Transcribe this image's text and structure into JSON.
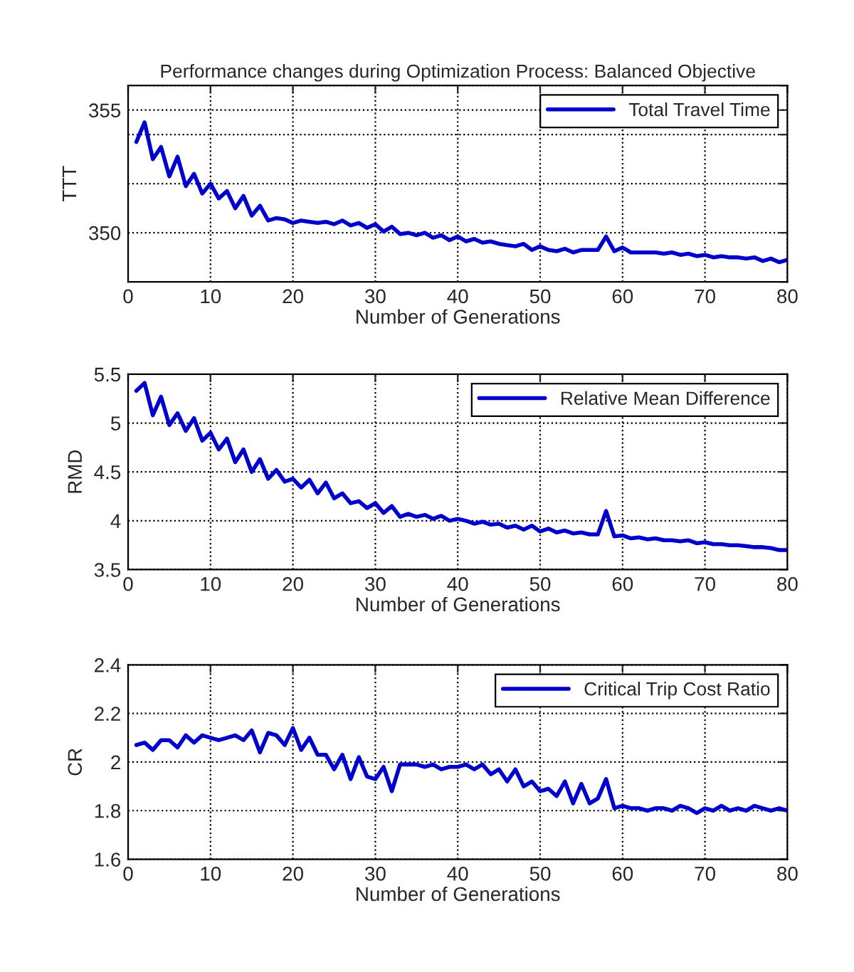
{
  "chart_data": [
    {
      "type": "line",
      "title": "Performance changes during Optimization Process: Balanced Objective",
      "xlabel": "Number of Generations",
      "ylabel": "TTT",
      "xlim": [
        0,
        80
      ],
      "xticks": [
        0,
        10,
        20,
        30,
        40,
        50,
        60,
        70,
        80
      ],
      "ylim": [
        348,
        356
      ],
      "yticks": [
        {
          "value": 348,
          "label": null
        },
        350,
        {
          "value": 352,
          "label": null
        },
        {
          "value": 354,
          "label": null
        },
        355,
        {
          "value": 356,
          "label": null
        }
      ],
      "grid": true,
      "legend": "top right",
      "x": [
        1,
        2,
        3,
        4,
        5,
        6,
        7,
        8,
        9,
        10,
        11,
        12,
        13,
        14,
        15,
        16,
        17,
        18,
        19,
        20,
        21,
        22,
        23,
        24,
        25,
        26,
        27,
        28,
        29,
        30,
        31,
        32,
        33,
        34,
        35,
        36,
        37,
        38,
        39,
        40,
        41,
        42,
        43,
        44,
        45,
        46,
        47,
        48,
        49,
        50,
        51,
        52,
        53,
        54,
        55,
        56,
        57,
        58,
        59,
        60,
        61,
        62,
        63,
        64,
        65,
        66,
        67,
        68,
        69,
        70,
        71,
        72,
        73,
        74,
        75,
        76,
        77,
        78,
        79,
        80
      ],
      "series": [
        {
          "name": "Total Travel Time",
          "color": "#0000cc",
          "values": [
            353.7,
            354.5,
            353.0,
            353.5,
            352.3,
            353.1,
            351.9,
            352.4,
            351.6,
            352.0,
            351.4,
            351.7,
            351.0,
            351.5,
            350.7,
            351.1,
            350.5,
            350.6,
            350.55,
            350.4,
            350.5,
            350.45,
            350.4,
            350.45,
            350.35,
            350.5,
            350.3,
            350.4,
            350.2,
            350.35,
            350.05,
            350.25,
            349.95,
            350.0,
            349.9,
            350.0,
            349.8,
            349.9,
            349.7,
            349.85,
            349.65,
            349.75,
            349.6,
            349.65,
            349.55,
            349.5,
            349.45,
            349.55,
            349.3,
            349.45,
            349.3,
            349.25,
            349.35,
            349.2,
            349.3,
            349.3,
            349.3,
            349.85,
            349.25,
            349.4,
            349.2,
            349.2,
            349.2,
            349.2,
            349.15,
            349.2,
            349.1,
            349.15,
            349.05,
            349.1,
            349.0,
            349.05,
            349.0,
            349.0,
            348.95,
            349.0,
            348.85,
            348.95,
            348.8,
            348.9
          ]
        }
      ]
    },
    {
      "type": "line",
      "xlabel": "Number of Generations",
      "ylabel": "RMD",
      "xlim": [
        0,
        80
      ],
      "xticks": [
        0,
        10,
        20,
        30,
        40,
        50,
        60,
        70,
        80
      ],
      "ylim": [
        3.5,
        5.5
      ],
      "yticks": [
        3.5,
        4,
        4.5,
        5,
        5.5
      ],
      "grid": true,
      "legend": "top right",
      "x": [
        1,
        2,
        3,
        4,
        5,
        6,
        7,
        8,
        9,
        10,
        11,
        12,
        13,
        14,
        15,
        16,
        17,
        18,
        19,
        20,
        21,
        22,
        23,
        24,
        25,
        26,
        27,
        28,
        29,
        30,
        31,
        32,
        33,
        34,
        35,
        36,
        37,
        38,
        39,
        40,
        41,
        42,
        43,
        44,
        45,
        46,
        47,
        48,
        49,
        50,
        51,
        52,
        53,
        54,
        55,
        56,
        57,
        58,
        59,
        60,
        61,
        62,
        63,
        64,
        65,
        66,
        67,
        68,
        69,
        70,
        71,
        72,
        73,
        74,
        75,
        76,
        77,
        78,
        79,
        80
      ],
      "series": [
        {
          "name": "Relative Mean Difference",
          "color": "#0000cc",
          "values": [
            5.33,
            5.41,
            5.08,
            5.27,
            4.98,
            5.1,
            4.92,
            5.05,
            4.82,
            4.9,
            4.73,
            4.84,
            4.6,
            4.73,
            4.5,
            4.63,
            4.43,
            4.52,
            4.4,
            4.43,
            4.34,
            4.42,
            4.28,
            4.39,
            4.23,
            4.28,
            4.18,
            4.2,
            4.13,
            4.18,
            4.08,
            4.15,
            4.04,
            4.07,
            4.04,
            4.06,
            4.02,
            4.05,
            4.0,
            4.02,
            4.0,
            3.97,
            3.99,
            3.96,
            3.97,
            3.93,
            3.95,
            3.91,
            3.95,
            3.89,
            3.92,
            3.88,
            3.9,
            3.87,
            3.88,
            3.86,
            3.86,
            4.1,
            3.84,
            3.85,
            3.82,
            3.83,
            3.81,
            3.82,
            3.8,
            3.8,
            3.79,
            3.8,
            3.77,
            3.78,
            3.76,
            3.76,
            3.75,
            3.75,
            3.74,
            3.73,
            3.73,
            3.72,
            3.7,
            3.7
          ]
        }
      ]
    },
    {
      "type": "line",
      "xlabel": "Number of Generations",
      "ylabel": "CR",
      "xlim": [
        0,
        80
      ],
      "xticks": [
        0,
        10,
        20,
        30,
        40,
        50,
        60,
        70,
        80
      ],
      "ylim": [
        1.6,
        2.4
      ],
      "yticks": [
        1.6,
        1.8,
        2,
        2.2,
        2.4
      ],
      "grid": true,
      "legend": "top right",
      "x": [
        1,
        2,
        3,
        4,
        5,
        6,
        7,
        8,
        9,
        10,
        11,
        12,
        13,
        14,
        15,
        16,
        17,
        18,
        19,
        20,
        21,
        22,
        23,
        24,
        25,
        26,
        27,
        28,
        29,
        30,
        31,
        32,
        33,
        34,
        35,
        36,
        37,
        38,
        39,
        40,
        41,
        42,
        43,
        44,
        45,
        46,
        47,
        48,
        49,
        50,
        51,
        52,
        53,
        54,
        55,
        56,
        57,
        58,
        59,
        60,
        61,
        62,
        63,
        64,
        65,
        66,
        67,
        68,
        69,
        70,
        71,
        72,
        73,
        74,
        75,
        76,
        77,
        78,
        79,
        80
      ],
      "series": [
        {
          "name": "Critical Trip Cost Ratio",
          "color": "#0000cc",
          "values": [
            2.07,
            2.08,
            2.05,
            2.09,
            2.09,
            2.06,
            2.11,
            2.08,
            2.11,
            2.1,
            2.09,
            2.1,
            2.11,
            2.09,
            2.13,
            2.04,
            2.12,
            2.11,
            2.07,
            2.14,
            2.05,
            2.1,
            2.03,
            2.03,
            1.97,
            2.03,
            1.93,
            2.02,
            1.94,
            1.93,
            1.98,
            1.88,
            1.99,
            1.99,
            1.99,
            1.98,
            1.99,
            1.97,
            1.98,
            1.98,
            1.99,
            1.97,
            1.99,
            1.95,
            1.97,
            1.92,
            1.97,
            1.9,
            1.92,
            1.88,
            1.89,
            1.86,
            1.92,
            1.83,
            1.91,
            1.83,
            1.85,
            1.93,
            1.81,
            1.82,
            1.81,
            1.81,
            1.8,
            1.81,
            1.81,
            1.8,
            1.82,
            1.81,
            1.79,
            1.81,
            1.8,
            1.82,
            1.8,
            1.81,
            1.8,
            1.82,
            1.81,
            1.8,
            1.81,
            1.8
          ]
        }
      ]
    }
  ]
}
